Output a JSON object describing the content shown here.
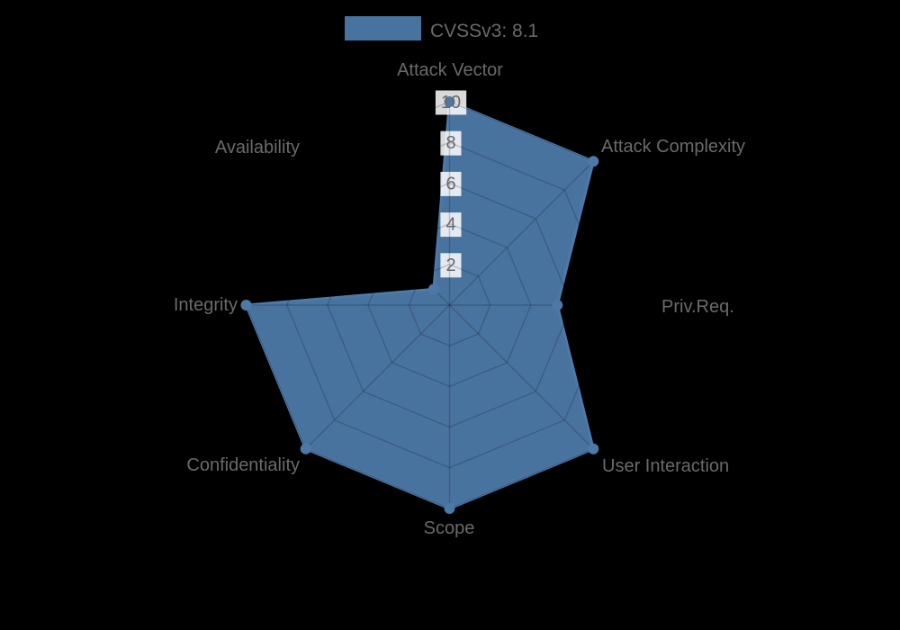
{
  "legend": {
    "label": "CVSSv3: 8.1"
  },
  "chart_data": {
    "type": "radar",
    "title": "",
    "categories": [
      "Attack Vector",
      "Attack Complexity",
      "Priv.Req.",
      "User Interaction",
      "Scope",
      "Confidentiality",
      "Integrity",
      "Availability"
    ],
    "series": [
      {
        "name": "CVSSv3: 8.1",
        "values": [
          10,
          10,
          5.3,
          10,
          10,
          10,
          10,
          1.1
        ]
      }
    ],
    "ticks": [
      2,
      4,
      6,
      8,
      10
    ],
    "rmin": 0,
    "rmax": 10,
    "grid": true,
    "legend_position": "top",
    "colors": {
      "series": "#4d79a8",
      "series_fill_opacity": 0.95,
      "grid_line": "rgba(0,0,0,0.18)",
      "label_text": "#6a6a6a",
      "tick_text": "#696969",
      "tick_backdrop": "rgba(255,255,255,0.85)",
      "background": "#000000"
    }
  }
}
